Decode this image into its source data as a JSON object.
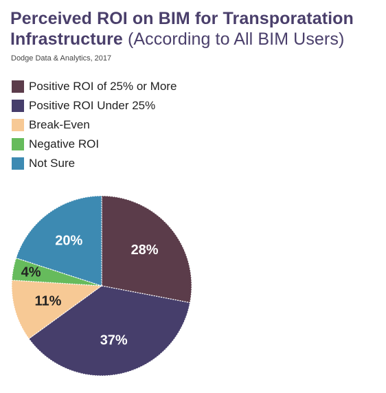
{
  "title": {
    "main_part1": "Perceived ROI on BIM for Transporatation",
    "main_part2": "Infrastructure",
    "subtitle": "(According to All BIM Users)"
  },
  "source": "Dodge Data & Analytics, 2017",
  "chart_data": {
    "type": "pie",
    "legend_position": "top-left",
    "slices": [
      {
        "label": "Positive ROI of 25% or More",
        "value": 28,
        "display": "28%",
        "color": "#5b3c4a",
        "label_color": "#ffffff"
      },
      {
        "label": "Positive ROI Under 25%",
        "value": 37,
        "display": "37%",
        "color": "#463e6b",
        "label_color": "#ffffff"
      },
      {
        "label": "Break-Even",
        "value": 11,
        "display": "11%",
        "color": "#f7c995",
        "label_color": "#222222"
      },
      {
        "label": "Negative ROI",
        "value": 4,
        "display": "4%",
        "color": "#66bb5c",
        "label_color": "#222222"
      },
      {
        "label": "Not Sure",
        "value": 20,
        "display": "20%",
        "color": "#3d8ab2",
        "label_color": "#ffffff"
      }
    ]
  }
}
